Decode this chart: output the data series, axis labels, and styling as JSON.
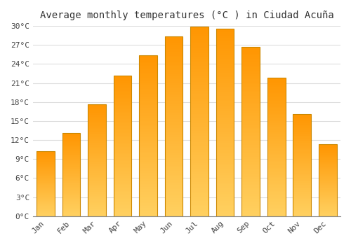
{
  "title": "Average monthly temperatures (°C ) in Ciudad Acuña",
  "months": [
    "Jan",
    "Feb",
    "Mar",
    "Apr",
    "May",
    "Jun",
    "Jul",
    "Aug",
    "Sep",
    "Oct",
    "Nov",
    "Dec"
  ],
  "values": [
    10.2,
    13.1,
    17.6,
    22.2,
    25.4,
    28.4,
    29.9,
    29.6,
    26.7,
    21.8,
    16.1,
    11.3
  ],
  "bar_color": "#FFA500",
  "bar_edge_color": "#CC8800",
  "ylim": [
    0,
    30
  ],
  "yticks": [
    0,
    3,
    6,
    9,
    12,
    15,
    18,
    21,
    24,
    27,
    30
  ],
  "ytick_labels": [
    "0°C",
    "3°C",
    "6°C",
    "9°C",
    "12°C",
    "15°C",
    "18°C",
    "21°C",
    "24°C",
    "27°C",
    "30°C"
  ],
  "plot_bg_color": "#ffffff",
  "fig_bg_color": "#ffffff",
  "grid_color": "#dddddd",
  "title_fontsize": 10,
  "tick_fontsize": 8,
  "bar_width": 0.7
}
